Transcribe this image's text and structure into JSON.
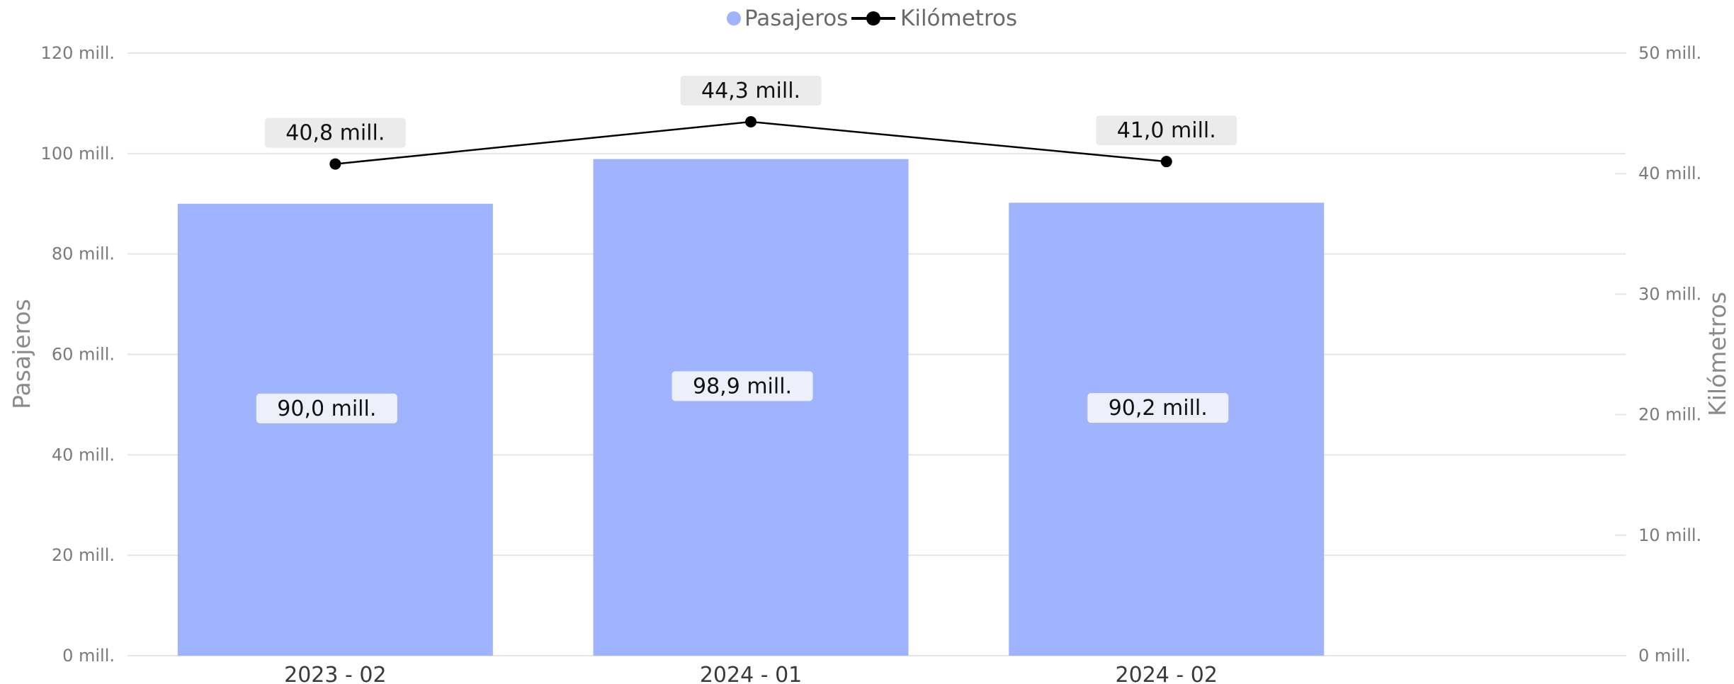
{
  "chart_data": {
    "type": "bar",
    "categories": [
      "2023 - 02",
      "2024 - 01",
      "2024 - 02"
    ],
    "series": [
      {
        "name": "Pasajeros",
        "type": "bar",
        "axis": "left",
        "values": [
          90.0,
          98.9,
          90.2
        ],
        "labels": [
          "90,0 mill.",
          "98,9 mill.",
          "90,2 mill."
        ],
        "color": "#9fb4fd"
      },
      {
        "name": "Kilómetros",
        "type": "line",
        "axis": "right",
        "values": [
          40.8,
          44.3,
          41.0
        ],
        "labels": [
          "40,8 mill.",
          "44,3 mill.",
          "41,0 mill."
        ],
        "color": "#000000"
      }
    ],
    "y_left": {
      "label": "Pasajeros",
      "ylim": [
        0,
        120
      ],
      "ticks": [
        0,
        20,
        40,
        60,
        80,
        100,
        120
      ],
      "tick_labels": [
        "0 mill.",
        "20 mill.",
        "40 mill.",
        "60 mill.",
        "80 mill.",
        "100 mill.",
        "120 mill."
      ]
    },
    "y_right": {
      "label": "Kilómetros",
      "ylim": [
        0,
        50
      ],
      "ticks": [
        0,
        10,
        20,
        30,
        40,
        50
      ],
      "tick_labels": [
        "0 mill.",
        "10 mill.",
        "20 mill.",
        "30 mill.",
        "40 mill.",
        "50 mill."
      ]
    },
    "legend": {
      "placement": "top-center",
      "entries": [
        "Pasajeros",
        "Kilómetros"
      ]
    },
    "grid": true,
    "colors": {
      "grid": "#e6e6e6",
      "label_bg": "#ebebeb",
      "bar_label_bg": "#edf0fb"
    }
  }
}
